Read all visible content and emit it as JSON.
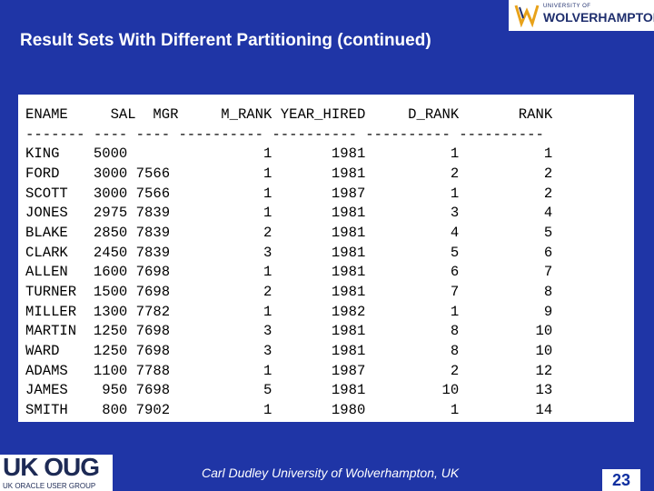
{
  "title": "Result Sets With Different Partitioning (continued)",
  "logo": {
    "small_text": "UNIVERSITY OF",
    "big_text": "WOLVERHAMPTON"
  },
  "result_set": {
    "lines": [
      "ENAME     SAL  MGR     M_RANK YEAR_HIRED     D_RANK       RANK",
      "------- ---- ---- ---------- ---------- ---------- ----------",
      "KING    5000                1       1981          1          1",
      "FORD    3000 7566           1       1981          2          2",
      "SCOTT   3000 7566           1       1987          1          2",
      "JONES   2975 7839           1       1981          3          4",
      "BLAKE   2850 7839           2       1981          4          5",
      "CLARK   2450 7839           3       1981          5          6",
      "ALLEN   1600 7698           1       1981          6          7",
      "TURNER  1500 7698           2       1981          7          8",
      "MILLER  1300 7782           1       1982          1          9",
      "MARTIN  1250 7698           3       1981          8         10",
      "WARD    1250 7698           3       1981          8         10",
      "ADAMS   1100 7788           1       1987          2         12",
      "JAMES    950 7698           5       1981         10         13",
      "SMITH    800 7902           1       1980          1         14"
    ]
  },
  "footer": {
    "ukoug_logo": "UK OUG",
    "ukoug_sub": "UK ORACLE USER GROUP",
    "author": "Carl Dudley   University of Wolverhampton, UK",
    "page_number": "23"
  },
  "colors": {
    "background": "#1f35a6",
    "title": "#ffffff",
    "page_number": "#0f2fa0"
  }
}
